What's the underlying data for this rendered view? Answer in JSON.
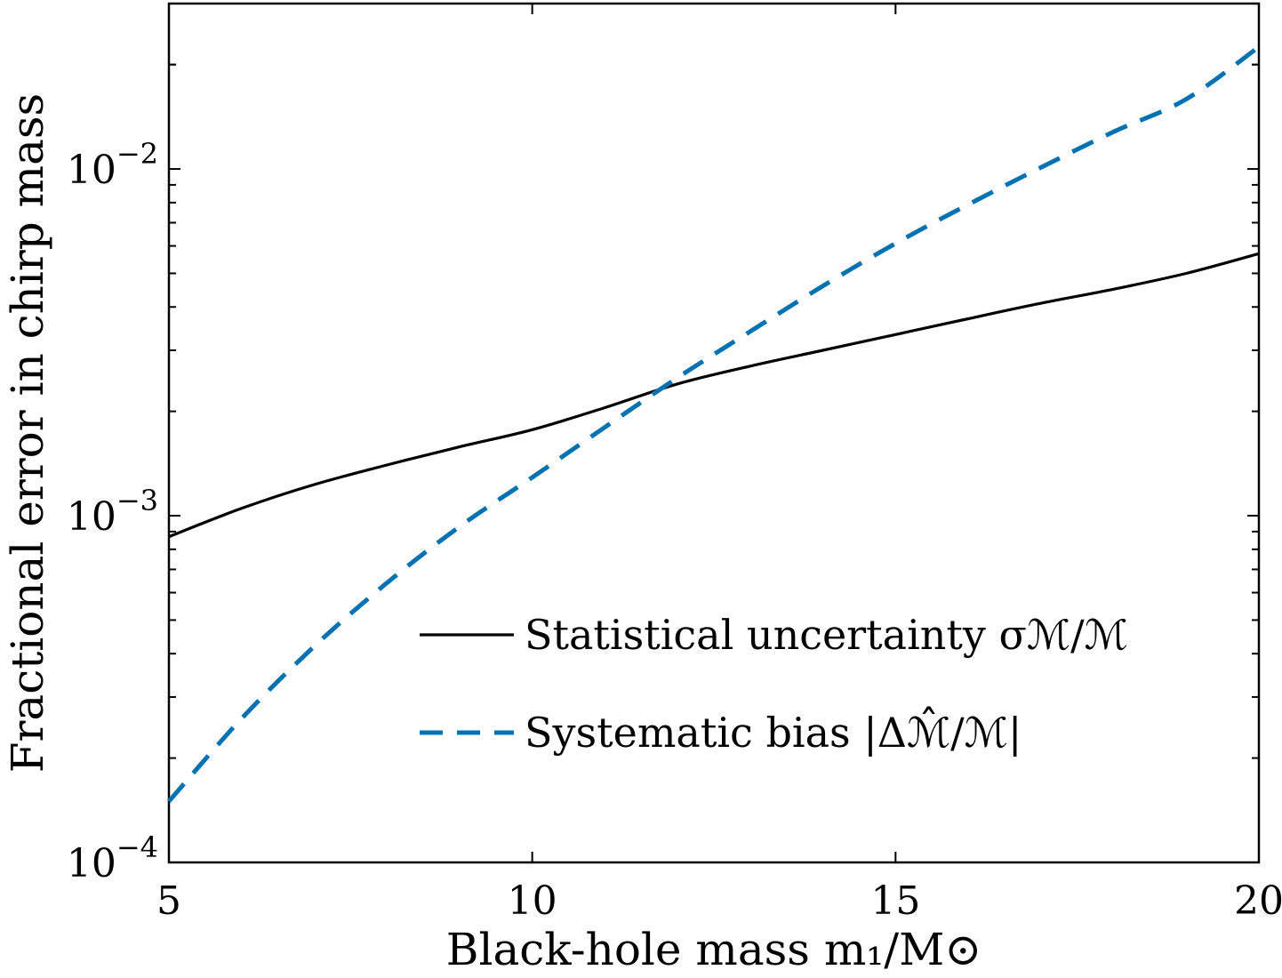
{
  "chart_data": {
    "type": "line",
    "xlabel": "Black-hole mass m₁/M⊙",
    "ylabel": "Fractional error in chirp mass",
    "x_ticks": [
      "5",
      "10",
      "15",
      "20"
    ],
    "y_ticks": [
      {
        "base": "10",
        "exp": "−4"
      },
      {
        "base": "10",
        "exp": "−3"
      },
      {
        "base": "10",
        "exp": "−2"
      }
    ],
    "xlim": [
      5,
      20
    ],
    "ylim": [
      0.0001,
      0.03
    ],
    "yscale": "log",
    "grid": false,
    "legend_position": "lower-right",
    "series": [
      {
        "name": "Statistical uncertainty σℳ/ℳ",
        "color": "#000000",
        "style": "solid",
        "x": [
          5,
          6,
          7,
          8,
          9,
          10,
          11,
          12,
          13,
          14,
          15,
          16,
          17,
          18,
          19,
          20
        ],
        "y": [
          0.00087,
          0.00105,
          0.00123,
          0.0014,
          0.00158,
          0.00177,
          0.00205,
          0.0024,
          0.0027,
          0.003,
          0.00333,
          0.0037,
          0.0041,
          0.0045,
          0.005,
          0.0057
        ]
      },
      {
        "name": "Systematic bias |Δℳ̂/ℳ|",
        "color": "#0072b2",
        "style": "dashed",
        "x": [
          5,
          6,
          7,
          8,
          9,
          10,
          11,
          12,
          13,
          14,
          15,
          16,
          17,
          18,
          19,
          20
        ],
        "y": [
          0.00015,
          0.00026,
          0.00042,
          0.00064,
          0.00093,
          0.00129,
          0.0018,
          0.0025,
          0.0034,
          0.0046,
          0.0061,
          0.0079,
          0.0101,
          0.0128,
          0.0159,
          0.0225
        ]
      }
    ]
  }
}
